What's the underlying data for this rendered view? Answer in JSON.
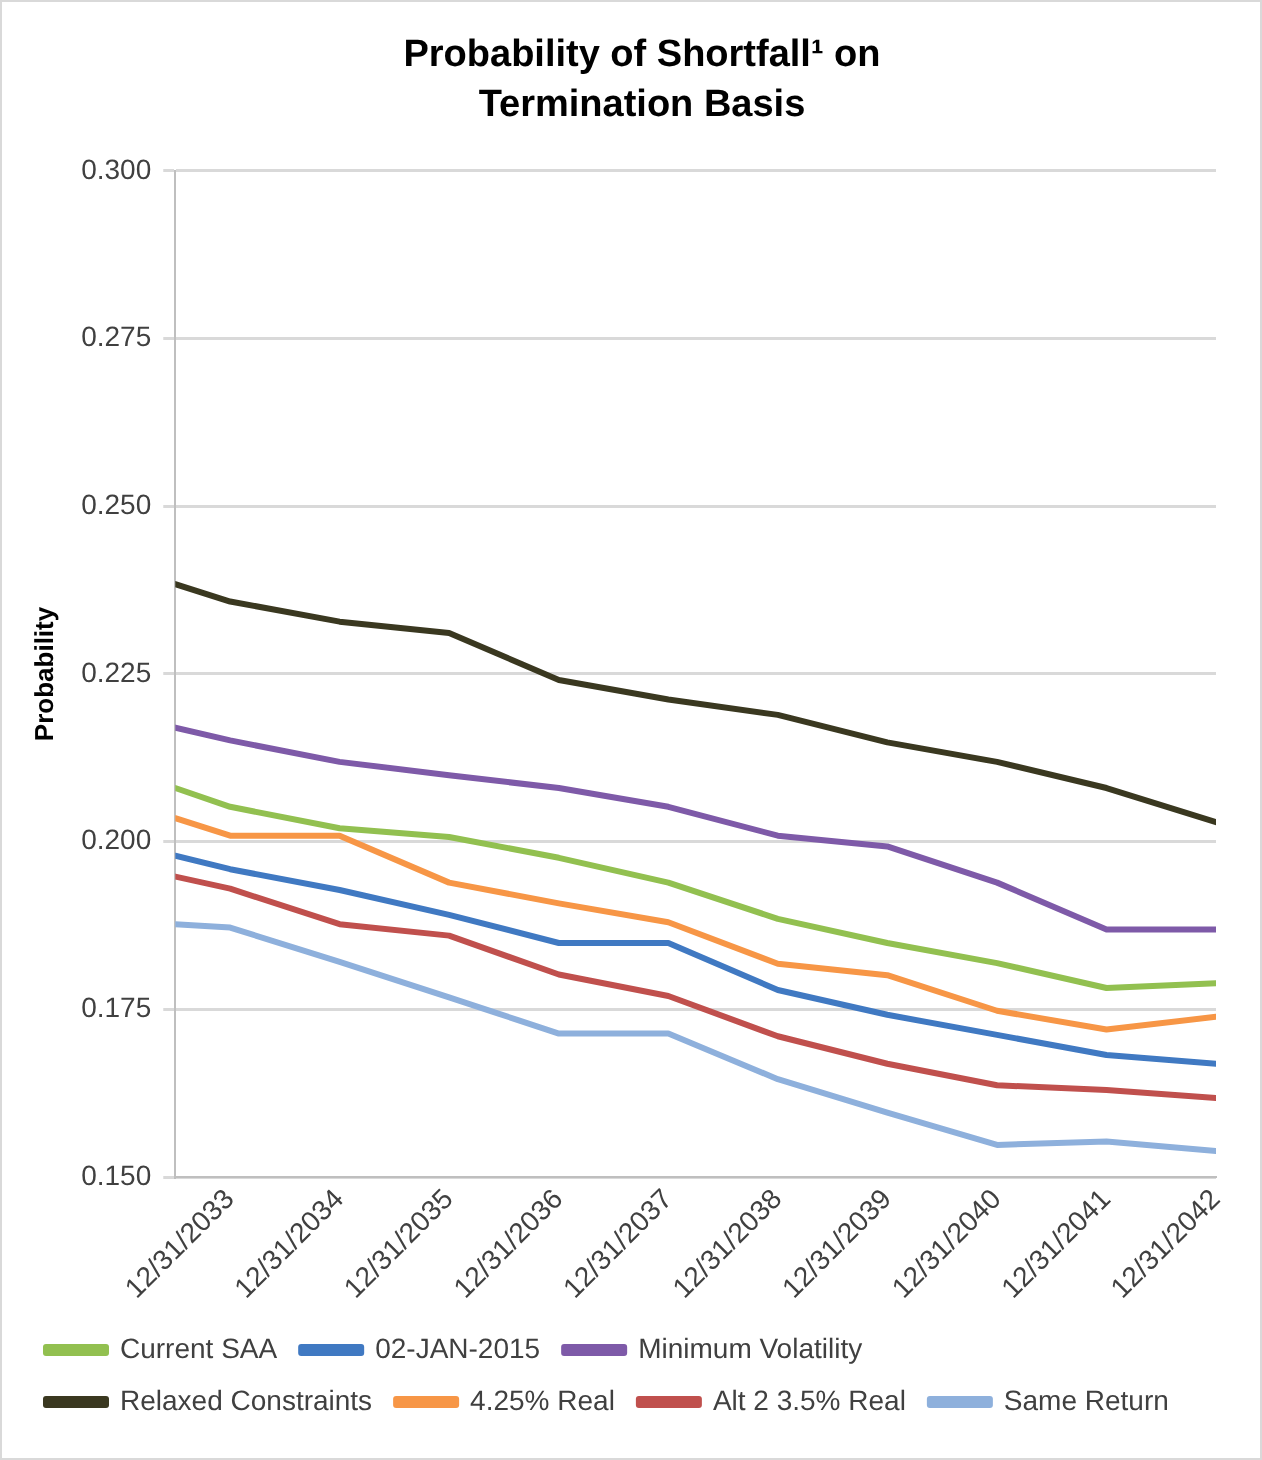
{
  "chart_data": {
    "type": "line",
    "title": "Probability of Shortfall¹ on Termination Basis",
    "ylabel": "Probability",
    "x": [
      "2033-07-01",
      "2033-12-31",
      "2034-12-31",
      "2035-12-31",
      "2036-12-31",
      "2037-12-31",
      "2038-12-31",
      "2039-12-31",
      "2040-12-31",
      "2041-12-31",
      "2042-12-31"
    ],
    "xlim": [
      "2033-07-01",
      "2042-12-31"
    ],
    "xticks": [
      {
        "value": "2033-12-31",
        "label": "12/31/2033"
      },
      {
        "value": "2034-12-31",
        "label": "12/31/2034"
      },
      {
        "value": "2035-12-31",
        "label": "12/31/2035"
      },
      {
        "value": "2036-12-31",
        "label": "12/31/2036"
      },
      {
        "value": "2037-12-31",
        "label": "12/31/2037"
      },
      {
        "value": "2038-12-31",
        "label": "12/31/2038"
      },
      {
        "value": "2039-12-31",
        "label": "12/31/2039"
      },
      {
        "value": "2040-12-31",
        "label": "12/31/2040"
      },
      {
        "value": "2041-12-31",
        "label": "12/31/2041"
      },
      {
        "value": "2042-12-31",
        "label": "12/31/2042"
      }
    ],
    "ylim": [
      0.15,
      0.3
    ],
    "yticks": [
      {
        "value": 0.15,
        "label": "0.150"
      },
      {
        "value": 0.175,
        "label": "0.175"
      },
      {
        "value": 0.2,
        "label": "0.200"
      },
      {
        "value": 0.225,
        "label": "0.225"
      },
      {
        "value": 0.25,
        "label": "0.250"
      },
      {
        "value": 0.275,
        "label": "0.275"
      },
      {
        "value": 0.3,
        "label": "0.300"
      }
    ],
    "series": [
      {
        "name": "Current SAA",
        "color": "#92c050",
        "values": [
          0.208,
          0.2052,
          0.202,
          0.2007,
          0.1976,
          0.1939,
          0.1885,
          0.1849,
          0.1819,
          0.1782,
          0.1789
        ]
      },
      {
        "name": "02-JAN-2015",
        "color": "#4079c2",
        "values": [
          0.1979,
          0.1959,
          0.1928,
          0.1891,
          0.1849,
          0.1849,
          0.1779,
          0.1742,
          0.1712,
          0.1682,
          0.1669
        ]
      },
      {
        "name": "Minimum Volatility",
        "color": "#7e5aa8",
        "values": [
          0.217,
          0.2151,
          0.2119,
          0.2099,
          0.208,
          0.2052,
          0.2009,
          0.1993,
          0.1939,
          0.1869,
          0.1869
        ]
      },
      {
        "name": "Relaxed Constraints",
        "color": "#3a3820",
        "values": [
          0.2384,
          0.2358,
          0.2328,
          0.2311,
          0.2241,
          0.2212,
          0.2189,
          0.2148,
          0.2119,
          0.208,
          0.2029
        ]
      },
      {
        "name": "4.25% Real",
        "color": "#f79646",
        "values": [
          0.2035,
          0.2009,
          0.2009,
          0.1939,
          0.1908,
          0.188,
          0.1818,
          0.1801,
          0.1748,
          0.172,
          0.1739
        ]
      },
      {
        "name": "Alt 2 3.5% Real",
        "color": "#c0504d",
        "values": [
          0.1948,
          0.193,
          0.1877,
          0.186,
          0.1802,
          0.177,
          0.171,
          0.1669,
          0.1637,
          0.163,
          0.1618
        ]
      },
      {
        "name": "Same Return",
        "color": "#8eb0dc",
        "values": [
          0.1877,
          0.1872,
          0.1821,
          0.1768,
          0.1714,
          0.1714,
          0.1646,
          0.1596,
          0.1548,
          0.1553,
          0.1539
        ]
      }
    ],
    "grid": "y",
    "legend": "bottom",
    "marker": "none",
    "line_style": "solid"
  }
}
